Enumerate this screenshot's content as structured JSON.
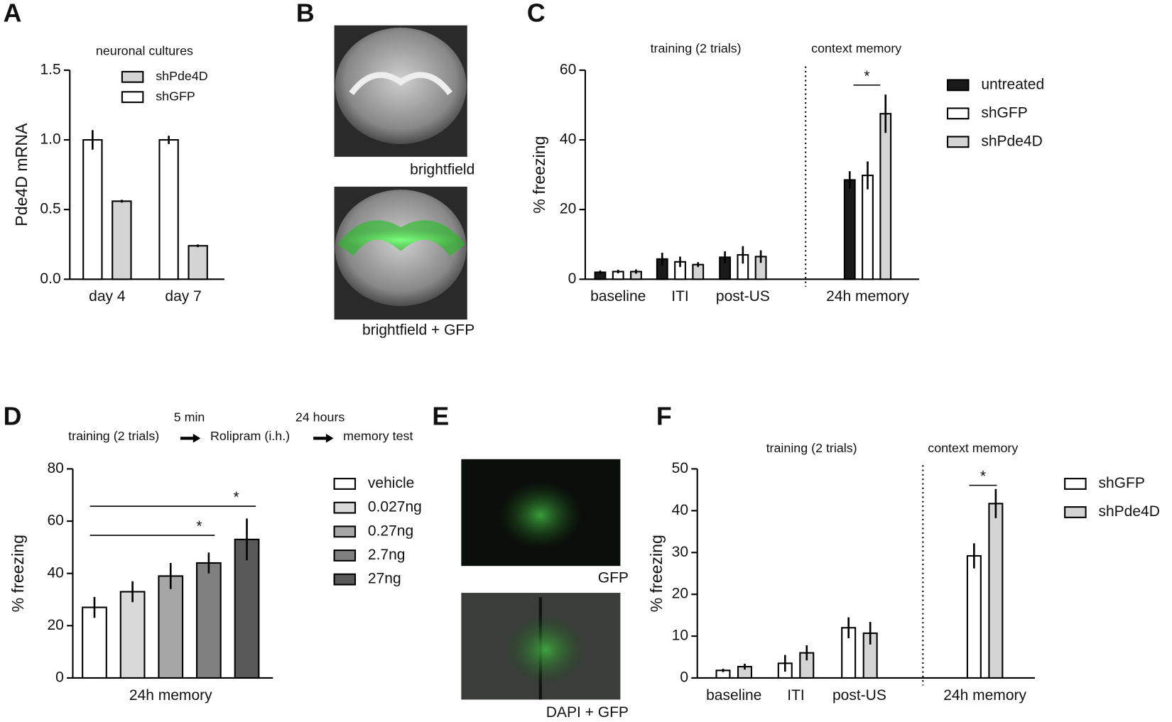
{
  "panels": [
    "A",
    "B",
    "C",
    "D",
    "E",
    "F"
  ],
  "images": [
    "brightfield",
    "brightfield + GFP",
    "GFP",
    "DAPI + GFP"
  ],
  "protocol": {
    "steps": [
      "training (2 trials)",
      "Rolipram (i.h.)",
      "memory test"
    ],
    "intervals": [
      "5 min",
      "24 hours"
    ]
  },
  "chart_data": [
    {
      "type": "bar",
      "subtitle": "neuronal cultures",
      "ylabel": "Pde4D mRNA",
      "categories": [
        "day 4",
        "day 7"
      ],
      "series": [
        {
          "name": "shGFP",
          "color": "#ffffff",
          "values": [
            1.0,
            1.0
          ],
          "errors": [
            0.07,
            0.03
          ]
        },
        {
          "name": "shPde4D",
          "color": "#d4d4d4",
          "values": [
            0.56,
            0.24
          ],
          "errors": [
            0.01,
            0.01
          ]
        }
      ],
      "ylim": [
        0,
        1.5
      ],
      "yticks": [
        {
          "value": 0,
          "label": "0.0"
        },
        0.5,
        {
          "value": 1,
          "label": "1.0"
        },
        1.5
      ]
    },
    {
      "type": "bar",
      "ylabel": "% freezing",
      "sections": [
        "training (2 trials)",
        "context memory"
      ],
      "annotations": [
        "*"
      ],
      "categories": [
        "baseline",
        "ITI",
        "post-US",
        "24h memory"
      ],
      "series": [
        {
          "name": "untreated",
          "color": "#1a1a1a",
          "values": [
            2,
            5.8,
            6.3,
            28.5
          ],
          "errors": [
            0.5,
            1.8,
            1.7,
            2.5
          ]
        },
        {
          "name": "shGFP",
          "color": "#ffffff",
          "values": [
            2.2,
            5,
            7,
            29.8
          ],
          "errors": [
            0.5,
            1.5,
            2.5,
            4
          ]
        },
        {
          "name": "shPde4D",
          "color": "#d4d4d4",
          "values": [
            2.2,
            4.2,
            6.5,
            47.5
          ],
          "errors": [
            0.6,
            0.7,
            1.8,
            5.5
          ]
        }
      ],
      "ylim": [
        0,
        60
      ],
      "yticks": [
        0,
        20,
        40,
        60
      ]
    },
    {
      "type": "bar",
      "ylabel": "% freezing",
      "annotations": [
        "*",
        "*"
      ],
      "categories": [
        "24h memory"
      ],
      "series": [
        {
          "name": "vehicle",
          "color": "#ffffff",
          "values": [
            27
          ],
          "errors": [
            4
          ]
        },
        {
          "name": "0.027ng",
          "color": "#d9d9d9",
          "values": [
            33
          ],
          "errors": [
            4
          ]
        },
        {
          "name": "0.27ng",
          "color": "#a6a6a6",
          "values": [
            39
          ],
          "errors": [
            5
          ]
        },
        {
          "name": "2.7ng",
          "color": "#808080",
          "values": [
            44
          ],
          "errors": [
            4
          ]
        },
        {
          "name": "27ng",
          "color": "#595959",
          "values": [
            53
          ],
          "errors": [
            8
          ]
        }
      ],
      "ylim": [
        0,
        80
      ],
      "yticks": [
        0,
        20,
        40,
        60,
        80
      ]
    },
    {
      "type": "bar",
      "ylabel": "% freezing",
      "sections": [
        "training (2 trials)",
        "context memory"
      ],
      "annotations": [
        "*"
      ],
      "categories": [
        "baseline",
        "ITI",
        "post-US",
        "24h memory"
      ],
      "series": [
        {
          "name": "shGFP",
          "color": "#ffffff",
          "values": [
            1.8,
            3.5,
            12,
            29.2
          ],
          "errors": [
            0.4,
            2,
            2.5,
            3
          ]
        },
        {
          "name": "shPde4D",
          "color": "#d4d4d4",
          "values": [
            2.7,
            6,
            10.7,
            41.7
          ],
          "errors": [
            0.7,
            1.8,
            2.7,
            3.5
          ]
        }
      ],
      "ylim": [
        0,
        50
      ],
      "yticks": [
        0,
        10,
        20,
        30,
        40,
        50
      ]
    }
  ]
}
